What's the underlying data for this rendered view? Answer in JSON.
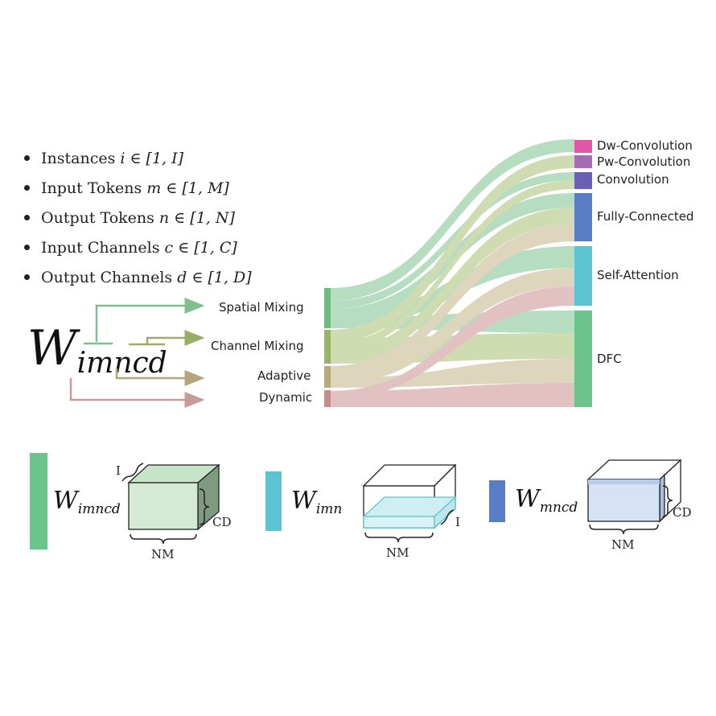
{
  "bullets": [
    {
      "label": "Instances",
      "math": "i ∈ [1, I]"
    },
    {
      "label": "Input Tokens",
      "math": "m ∈ [1, M]"
    },
    {
      "label": "Output Tokens",
      "math": "n ∈ [1, N]"
    },
    {
      "label": "Input Channels",
      "math": "c ∈ [1, C]"
    },
    {
      "label": "Output Channels",
      "math": "d ∈ [1, D]"
    }
  ],
  "weight": {
    "base": "W",
    "sub": "imncd"
  },
  "mixing_types": [
    {
      "label": "Spatial Mixing",
      "color": "#6dbb7d"
    },
    {
      "label": "Channel Mixing",
      "color": "#97b56a"
    },
    {
      "label": "Adaptive",
      "color": "#b8a87a"
    },
    {
      "label": "Dynamic",
      "color": "#c98a8a"
    }
  ],
  "targets": [
    {
      "label": "Dw-Convolution",
      "color": "#de58a6"
    },
    {
      "label": "Pw-Convolution",
      "color": "#a86cb6"
    },
    {
      "label": "Convolution",
      "color": "#6b5fb5"
    },
    {
      "label": "Fully-Connected",
      "color": "#5a7ec6"
    },
    {
      "label": "Self-Attention",
      "color": "#5cc3d3"
    },
    {
      "label": "DFC",
      "color": "#6bc48c"
    }
  ],
  "legend": [
    {
      "symbol": "W",
      "sub": "imncd",
      "color": "#6bc48c",
      "dims": [
        "I",
        "CD",
        "NM"
      ]
    },
    {
      "symbol": "W",
      "sub": "imn",
      "color": "#5cc3d3",
      "dims": [
        "I",
        "NM"
      ]
    },
    {
      "symbol": "W",
      "sub": "mncd",
      "color": "#5a7ec6",
      "dims": [
        "CD",
        "NM"
      ]
    }
  ]
}
